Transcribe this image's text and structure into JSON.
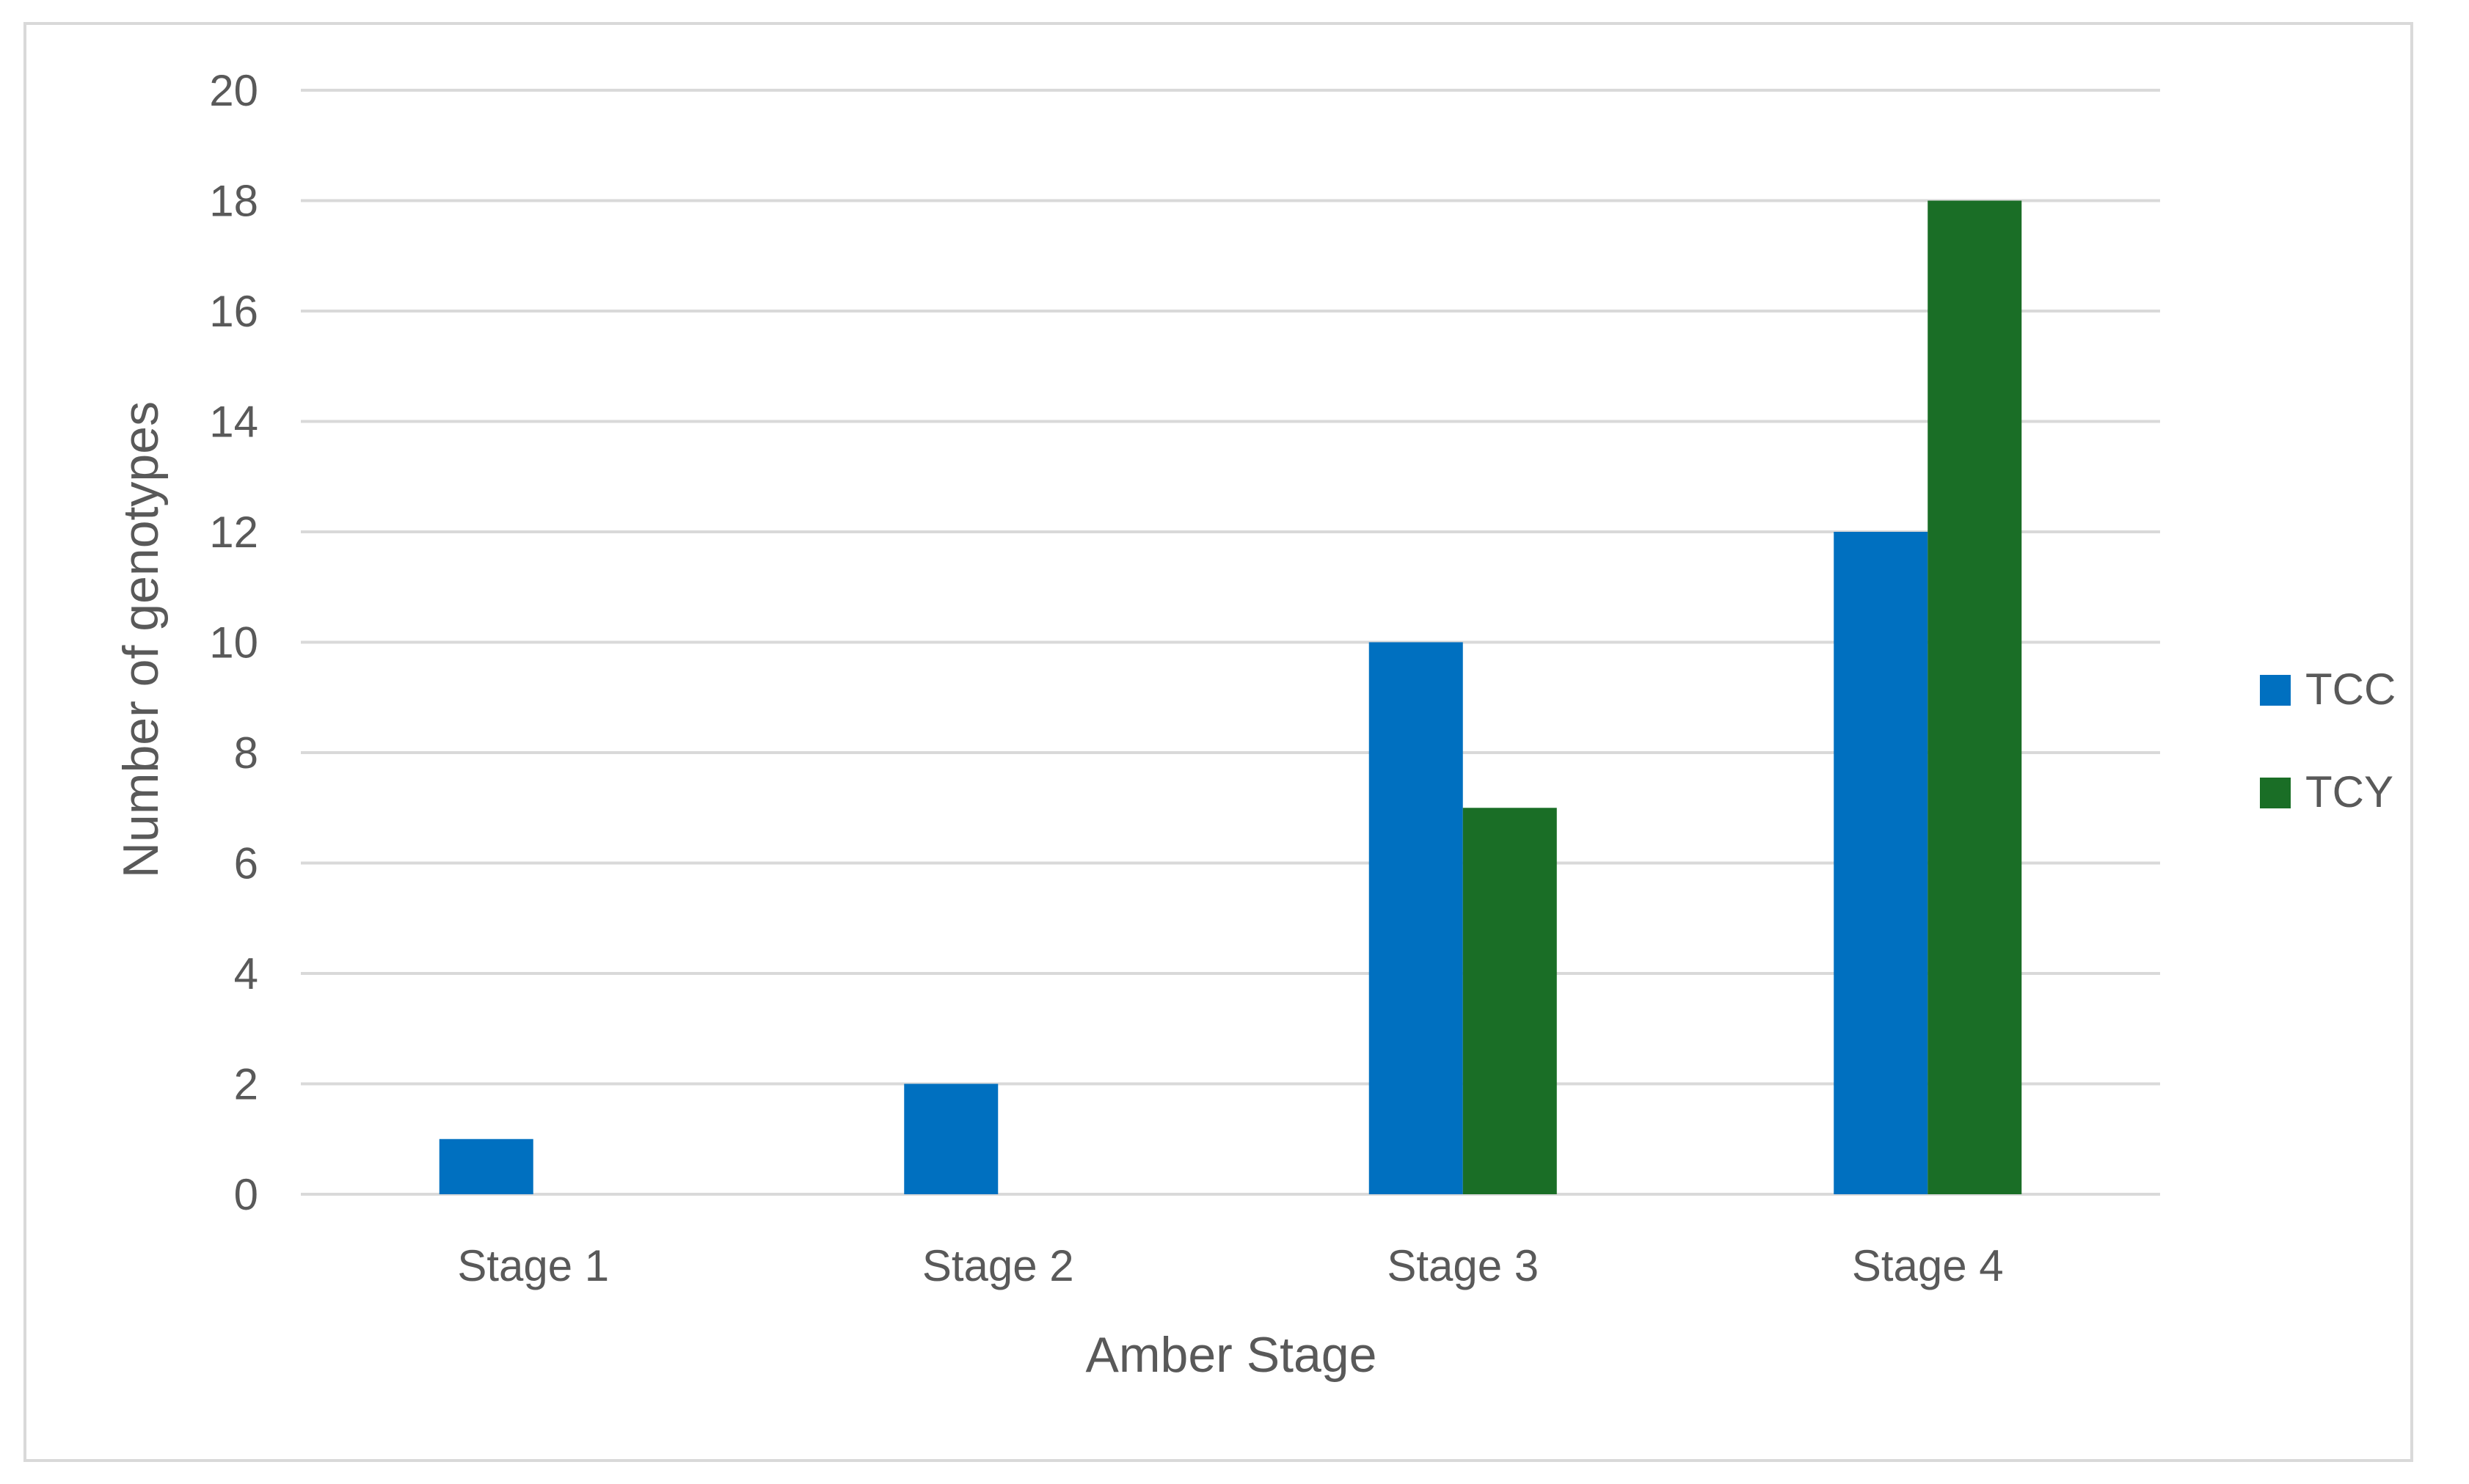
{
  "chart_data": {
    "type": "bar",
    "title": "",
    "xlabel": "Amber Stage",
    "ylabel": "Number of genotypes",
    "categories": [
      "Stage 1",
      "Stage 2",
      "Stage 3",
      "Stage 4"
    ],
    "series": [
      {
        "name": "TCC",
        "color": "#0070c0",
        "values": [
          1,
          2,
          10,
          12
        ]
      },
      {
        "name": "TCY",
        "color": "#1a6e26",
        "values": [
          0,
          0,
          7,
          18
        ]
      }
    ],
    "ylim": [
      0,
      20
    ],
    "yticks": [
      0,
      2,
      4,
      6,
      8,
      10,
      12,
      14,
      16,
      18,
      20
    ],
    "grid": true,
    "gridColor": "#d9d9d9",
    "legend_position": "right"
  }
}
